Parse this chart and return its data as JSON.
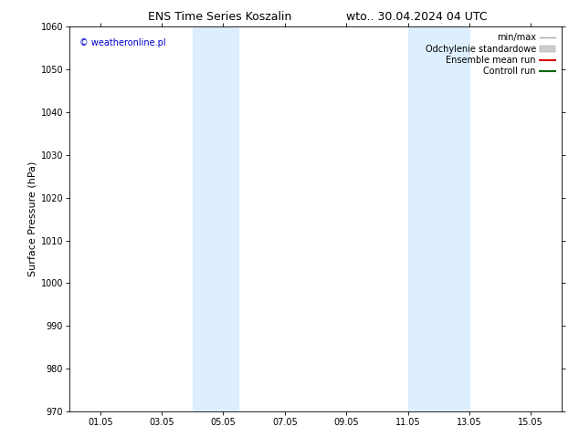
{
  "title_left": "ENS Time Series Koszalin",
  "title_right": "wto.. 30.04.2024 04 UTC",
  "ylabel": "Surface Pressure (hPa)",
  "ylim": [
    970,
    1060
  ],
  "yticks": [
    970,
    980,
    990,
    1000,
    1010,
    1020,
    1030,
    1040,
    1050,
    1060
  ],
  "xtick_labels": [
    "01.05",
    "03.05",
    "05.05",
    "07.05",
    "09.05",
    "11.05",
    "13.05",
    "15.05"
  ],
  "xtick_positions": [
    1,
    3,
    5,
    7,
    9,
    11,
    13,
    15
  ],
  "xlim": [
    0,
    16
  ],
  "shaded_regions": [
    {
      "x_start": 4.0,
      "x_end": 5.5,
      "color": "#ddeeff"
    },
    {
      "x_start": 11.0,
      "x_end": 13.0,
      "color": "#ddeeff"
    }
  ],
  "watermark_text": "© weatheronline.pl",
  "watermark_color": "#0000cc",
  "legend_entries": [
    {
      "label": "min/max",
      "color": "#aaaaaa",
      "lw": 1.0,
      "type": "line"
    },
    {
      "label": "Odchylenie standardowe",
      "color": "#cccccc",
      "lw": 8,
      "type": "patch"
    },
    {
      "label": "Ensemble mean run",
      "color": "#dd0000",
      "lw": 1.5,
      "type": "line"
    },
    {
      "label": "Controll run",
      "color": "#006600",
      "lw": 1.5,
      "type": "line"
    }
  ],
  "bg_color": "#ffffff",
  "spine_color": "#000000",
  "title_fontsize": 9,
  "axis_label_fontsize": 8,
  "tick_fontsize": 7,
  "watermark_fontsize": 7,
  "legend_fontsize": 7
}
